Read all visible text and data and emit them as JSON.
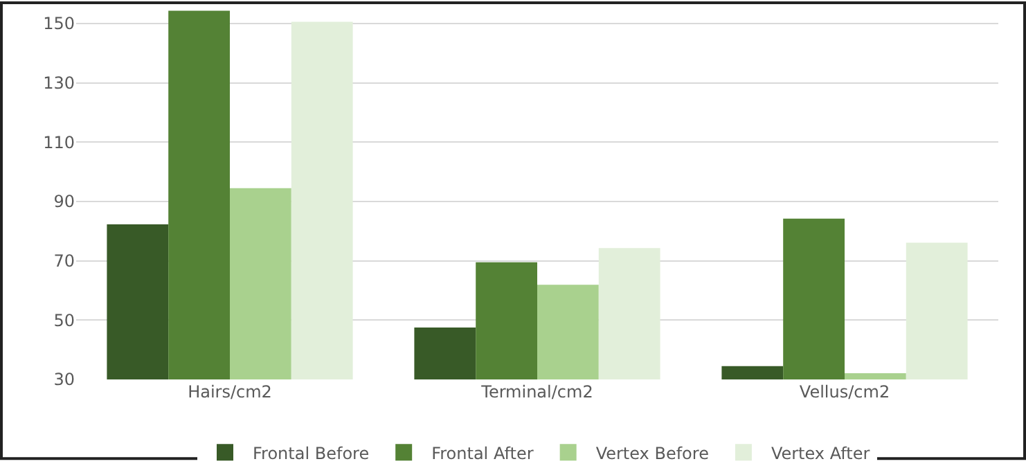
{
  "chart_data": {
    "type": "bar",
    "categories": [
      "Hairs/cm2",
      "Terminal/cm2",
      "Vellus/cm2"
    ],
    "series": [
      {
        "name": "Frontal Before",
        "color": "#385a27",
        "values": [
          82.3,
          47.5,
          34.5
        ]
      },
      {
        "name": "Frontal After",
        "color": "#548235",
        "values": [
          154.3,
          69.5,
          84.2
        ]
      },
      {
        "name": "Vertex Before",
        "color": "#a9d18e",
        "values": [
          94.5,
          61.9,
          32.1
        ]
      },
      {
        "name": "Vertex After",
        "color": "#e2efda",
        "values": [
          150.6,
          74.3,
          76.1
        ]
      }
    ],
    "ylim": [
      30,
      157
    ],
    "yticks": [
      30,
      50,
      70,
      90,
      110,
      130,
      150
    ],
    "grid": "y",
    "legend": "bottom"
  }
}
